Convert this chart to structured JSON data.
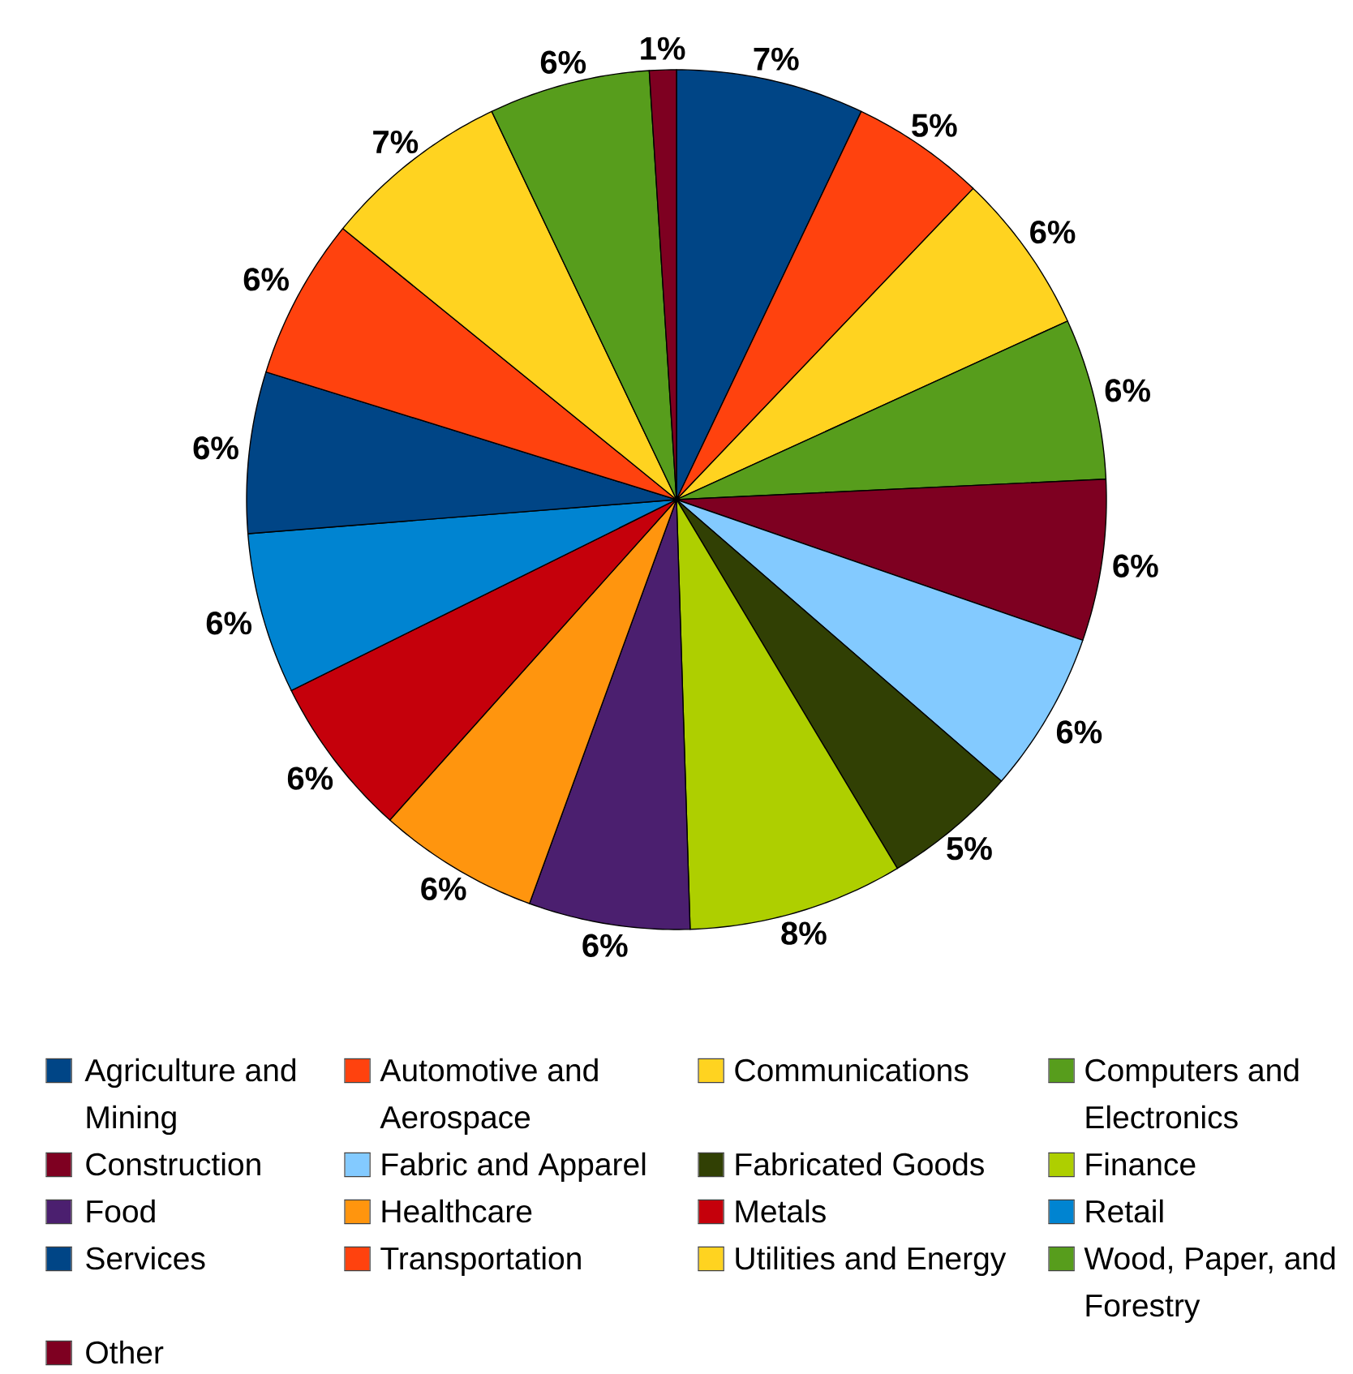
{
  "chart_data": {
    "type": "pie",
    "categories": [
      "Agriculture and Mining",
      "Automotive and Aerospace",
      "Communications",
      "Computers and Electronics",
      "Construction",
      "Fabric and Apparel",
      "Fabricated Goods",
      "Finance",
      "Food",
      "Healthcare",
      "Metals",
      "Retail",
      "Services",
      "Transportation",
      "Utilities and Energy",
      "Wood, Paper, and Forestry",
      "Other"
    ],
    "values": [
      7,
      5,
      6,
      6,
      6,
      6,
      5,
      8,
      6,
      6,
      6,
      6,
      6,
      6,
      7,
      6,
      1
    ],
    "value_labels": [
      "7%",
      "5%",
      "6%",
      "6%",
      "6%",
      "6%",
      "5%",
      "8%",
      "6%",
      "6%",
      "6%",
      "6%",
      "6%",
      "6%",
      "7%",
      "6%",
      "1%"
    ],
    "colors": [
      "#004586",
      "#ff420e",
      "#ffd320",
      "#579d1c",
      "#7e0021",
      "#83caff",
      "#314004",
      "#aecf00",
      "#4b1f6f",
      "#ff950e",
      "#c5000b",
      "#0084d1",
      "#004586",
      "#ff420e",
      "#ffd320",
      "#579d1c",
      "#7e0021"
    ],
    "legend": "bottom"
  }
}
